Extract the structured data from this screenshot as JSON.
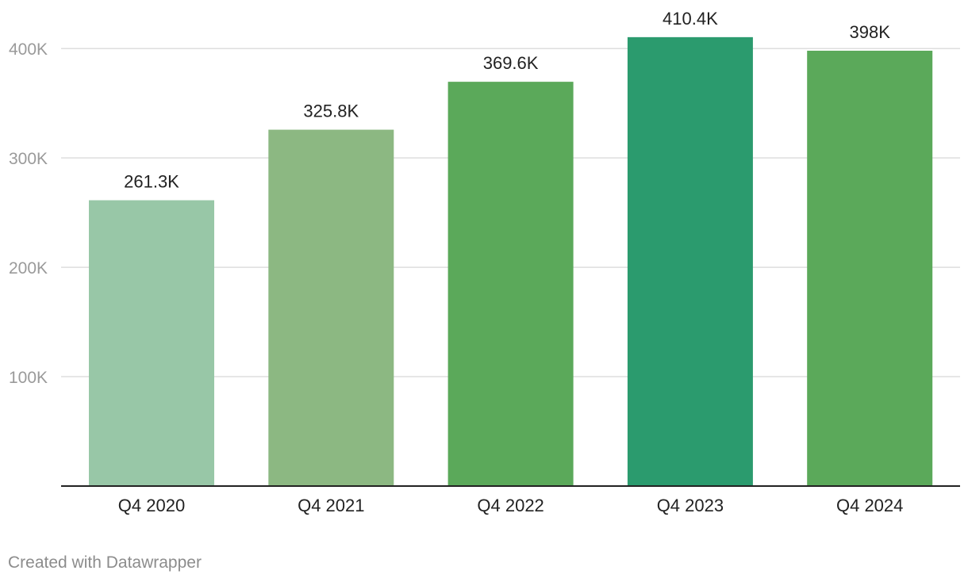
{
  "chart_data": {
    "type": "bar",
    "categories": [
      "Q4 2020",
      "Q4 2021",
      "Q4 2022",
      "Q4 2023",
      "Q4 2024"
    ],
    "values": [
      261.3,
      325.8,
      369.6,
      410.4,
      398
    ],
    "value_labels": [
      "261.3K",
      "325.8K",
      "369.6K",
      "410.4K",
      "398K"
    ],
    "bar_colors": [
      "#98c7a7",
      "#8cb882",
      "#5ba95a",
      "#2b9b6e",
      "#5ba95a"
    ],
    "y_ticks": [
      100,
      200,
      300,
      400
    ],
    "y_tick_labels": [
      "100K",
      "200K",
      "300K",
      "400K"
    ],
    "ylim": [
      0,
      400
    ],
    "title": "",
    "xlabel": "",
    "ylabel": "",
    "grid": true,
    "legend": "none"
  },
  "footer": {
    "credit": "Created with Datawrapper"
  }
}
